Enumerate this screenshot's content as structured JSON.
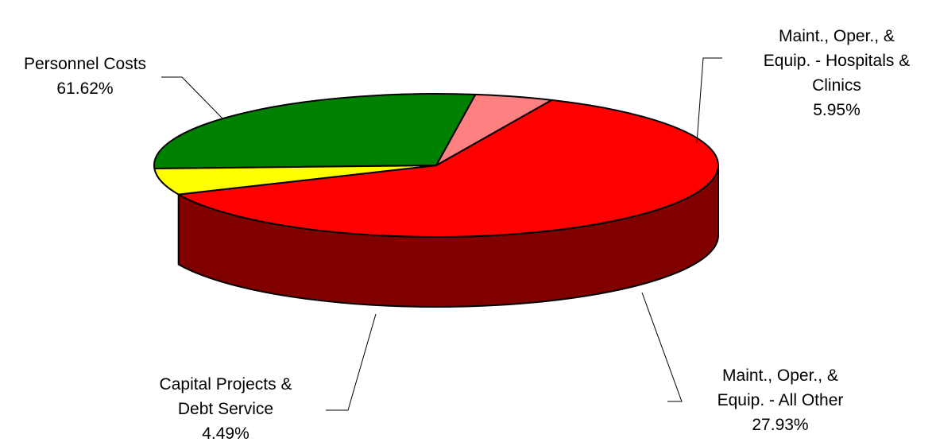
{
  "chart_data": {
    "type": "pie",
    "three_d": true,
    "slices": [
      {
        "label_lines": [
          "Personnel Costs"
        ],
        "pct_text": "61.62%",
        "value": 61.62,
        "color": "#ff0000",
        "side_color": "#800000"
      },
      {
        "label_lines": [
          "Maint., Oper., &",
          "Equip. - Hospitals &",
          "Clinics"
        ],
        "pct_text": "5.95%",
        "value": 5.95,
        "color": "#ffff00",
        "side_color": "#808000"
      },
      {
        "label_lines": [
          "Maint., Oper., &",
          "Equip. - All Other"
        ],
        "pct_text": "27.93%",
        "value": 27.93,
        "color": "#008000",
        "side_color": "#004000"
      },
      {
        "label_lines": [
          "Capital Projects &",
          "Debt Service"
        ],
        "pct_text": "4.49%",
        "value": 4.49,
        "color": "#ff8080",
        "side_color": "#804040"
      }
    ]
  }
}
